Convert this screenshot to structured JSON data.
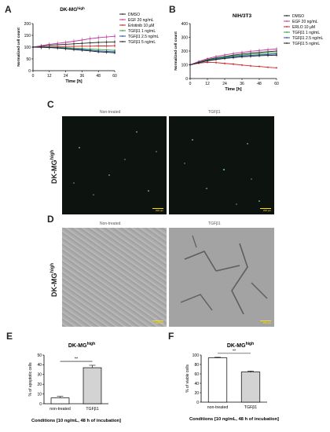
{
  "panels": {
    "A": {
      "label": "A",
      "title": "DK-MGhigh",
      "title_main": "DK-MG",
      "title_sup": "high"
    },
    "B": {
      "label": "B",
      "title": "NIH/3T3"
    },
    "C": {
      "label": "C",
      "col1": "Non-treated",
      "col2": "TGFβ1",
      "row_label_main": "DK-MG",
      "row_label_sup": "high",
      "scale_label": "200 μm"
    },
    "D": {
      "label": "D",
      "col1": "Non-treated",
      "col2": "TGFβ1",
      "row_label_main": "DK-MG",
      "row_label_sup": "high",
      "scale_label": "200 μm"
    },
    "E": {
      "label": "E",
      "title_main": "DK-MG",
      "title_sup": "high"
    },
    "F": {
      "label": "F",
      "title_main": "DK-MG",
      "title_sup": "high"
    }
  },
  "chart_data": [
    {
      "panel": "A",
      "type": "line",
      "xlabel": "Time [h]",
      "ylabel": "Normalized cell count",
      "x": [
        0,
        6,
        12,
        18,
        24,
        30,
        36,
        42,
        48,
        54,
        60
      ],
      "xticks": [
        0,
        12,
        24,
        36,
        48,
        60
      ],
      "yticks": [
        0,
        50,
        100,
        150,
        200
      ],
      "ylim": [
        0,
        200
      ],
      "series": [
        {
          "name": "DMSO",
          "color": "#222222",
          "values": [
            100,
            104,
            108,
            110,
            112,
            114,
            116,
            118,
            120,
            121,
            122
          ]
        },
        {
          "name": "EGF 20 ng/mL",
          "color": "#c0399b",
          "values": [
            100,
            106,
            112,
            116,
            120,
            125,
            130,
            136,
            140,
            143,
            146
          ]
        },
        {
          "name": "Erlotinib 10 µM",
          "color": "#d22020",
          "values": [
            100,
            101,
            102,
            102,
            103,
            103,
            104,
            104,
            105,
            105,
            106
          ]
        },
        {
          "name": "TGFβ1 1 ng/mL",
          "color": "#2e9e3e",
          "values": [
            100,
            100,
            100,
            99,
            98,
            96,
            94,
            92,
            90,
            88,
            86
          ]
        },
        {
          "name": "TGFβ1 2.5 ng/mL",
          "color": "#1f4fb0",
          "values": [
            100,
            100,
            99,
            97,
            95,
            92,
            90,
            87,
            84,
            82,
            80
          ]
        },
        {
          "name": "TGFβ1 5 ng/mL",
          "color": "#222222",
          "values": [
            100,
            99,
            98,
            96,
            93,
            90,
            87,
            84,
            80,
            78,
            76
          ]
        }
      ]
    },
    {
      "panel": "B",
      "type": "line",
      "xlabel": "Time [h]",
      "ylabel": "Normalized cell count",
      "x": [
        0,
        6,
        12,
        18,
        24,
        30,
        36,
        42,
        48,
        54,
        60
      ],
      "xticks": [
        0,
        12,
        24,
        36,
        48,
        60
      ],
      "yticks": [
        0,
        100,
        200,
        300,
        400
      ],
      "ylim": [
        0,
        400
      ],
      "series": [
        {
          "name": "DMSO",
          "color": "#222222",
          "values": [
            100,
            120,
            138,
            150,
            160,
            170,
            178,
            185,
            190,
            195,
            200
          ]
        },
        {
          "name": "EGF 20 ng/mL",
          "color": "#c0399b",
          "values": [
            100,
            125,
            145,
            160,
            172,
            182,
            190,
            198,
            204,
            210,
            215
          ]
        },
        {
          "name": "ERLO 10 µM",
          "color": "#d22020",
          "values": [
            100,
            112,
            118,
            116,
            110,
            105,
            98,
            92,
            88,
            82,
            78
          ]
        },
        {
          "name": "TGFβ1 1 ng/mL",
          "color": "#2e9e3e",
          "values": [
            100,
            118,
            134,
            146,
            156,
            164,
            170,
            176,
            180,
            184,
            186
          ]
        },
        {
          "name": "TGFβ1 2.5 ng/mL",
          "color": "#1f4fb0",
          "values": [
            100,
            116,
            130,
            142,
            150,
            158,
            164,
            168,
            172,
            175,
            178
          ]
        },
        {
          "name": "TGFβ1 5 ng/mL",
          "color": "#222222",
          "values": [
            100,
            115,
            128,
            138,
            146,
            152,
            158,
            162,
            166,
            168,
            170
          ]
        }
      ]
    },
    {
      "panel": "E",
      "type": "bar",
      "categories": [
        "non-treated",
        "TGFβ1"
      ],
      "values": [
        6,
        37
      ],
      "errors": [
        1.5,
        2.5
      ],
      "ylabel": "% of apoptotic cells",
      "xlabel": "Conditions [10 ng/mL, 48 h of incubation]",
      "yticks": [
        0,
        10,
        20,
        30,
        40,
        50
      ],
      "ylim": [
        0,
        50
      ],
      "significance": "**",
      "bar_colors": [
        "#ffffff",
        "#d3d3d3"
      ]
    },
    {
      "panel": "F",
      "type": "bar",
      "categories": [
        "non-treated",
        "TGFβ1"
      ],
      "values": [
        94,
        64
      ],
      "errors": [
        1.2,
        2.0
      ],
      "ylabel": "% of viable cells",
      "xlabel": "Conditions [10 ng/mL, 48 h of incubation]",
      "yticks": [
        0,
        20,
        40,
        60,
        80,
        100
      ],
      "ylim": [
        0,
        100
      ],
      "significance": "**",
      "bar_colors": [
        "#ffffff",
        "#d3d3d3"
      ]
    }
  ]
}
